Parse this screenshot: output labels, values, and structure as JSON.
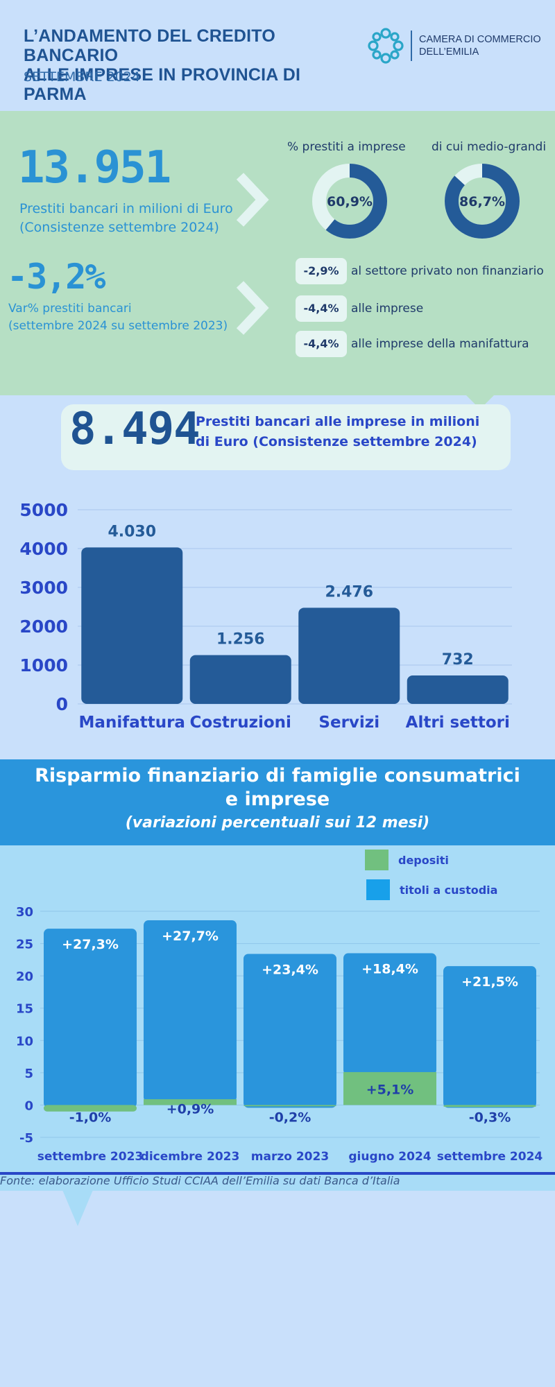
{
  "header": {
    "title_line1": "L’ANDAMENTO DEL CREDITO BANCARIO",
    "title_line2": "ALLE IMPRESE IN PROVINCIA DI PARMA",
    "subtitle": "SETTEMBRE 2024",
    "org_line1": "CAMERA DI COMMERCIO",
    "org_line2": "DELL’EMILIA"
  },
  "loans": {
    "total": "13.951",
    "total_desc_line1": "Prestiti bancari in milioni di Euro",
    "total_desc_line2": "(Consistenze settembre 2024)",
    "donut1": {
      "label": "%  prestiti a imprese",
      "value_text": "60,9%",
      "value": 60.9
    },
    "donut2": {
      "label": "di cui medio-grandi",
      "value_text": "86,7%",
      "value": 86.7
    },
    "variation": "-3,2%",
    "variation_desc_line1": "Var% prestiti bancari",
    "variation_desc_line2": "(settembre 2024 su settembre 2023)",
    "breakdown": [
      {
        "value": "-2,9%",
        "label": "al settore privato non finanziario"
      },
      {
        "value": "-4,4%",
        "label": "alle imprese"
      },
      {
        "value": "-4,4%",
        "label": "alle imprese della manifattura"
      }
    ]
  },
  "business_loans": {
    "total": "8.494",
    "desc_line1": "Prestiti bancari alle imprese in milioni",
    "desc_line2": "di Euro (Consistenze settembre 2024)"
  },
  "savings": {
    "title_line1": "Risparmio finanziario di famiglie consumatrici",
    "title_line2": "e imprese",
    "subtitle": "(variazioni percentuali sui 12 mesi)",
    "source": "Fonte: elaborazione Ufficio Studi CCIAA dell’Emilia su dati Banca d’Italia"
  },
  "colors": {
    "dark_blue": "#245b98",
    "bright_blue": "#2a95dc",
    "green": "#71c07f",
    "donut_track": "#e3f4f2"
  },
  "chart_data": [
    {
      "type": "bar",
      "categories": [
        "Manifattura",
        "Costruzioni",
        "Servizi",
        "Altri settori"
      ],
      "values": [
        4030,
        1256,
        2476,
        732
      ],
      "value_labels": [
        "4.030",
        "1.256",
        "2.476",
        "732"
      ],
      "ylim": [
        0,
        5000
      ],
      "yticks": [
        "0",
        "1000",
        "2000",
        "3000",
        "4000",
        "5000"
      ],
      "grid": true
    },
    {
      "type": "bar",
      "categories": [
        "settembre 2023",
        "dicembre 2023",
        "marzo 2023",
        "giugno 2024",
        "settembre 2024"
      ],
      "series": [
        {
          "name": "depositi",
          "values": [
            -1.0,
            0.9,
            -0.2,
            5.1,
            -0.3
          ],
          "labels": [
            "-1,0%",
            "+0,9%",
            "-0,2%",
            "+5,1%",
            "-0,3%"
          ]
        },
        {
          "name": "titoli a custodia",
          "values": [
            27.3,
            27.7,
            23.4,
            18.4,
            21.5
          ],
          "labels": [
            "+27,3%",
            "+27,7%",
            "+23,4%",
            "+18,4%",
            "+21,5%"
          ]
        }
      ],
      "ylim": [
        -5,
        30
      ],
      "yticks": [
        "-5",
        "0",
        "5",
        "10",
        "15",
        "20",
        "25",
        "30"
      ],
      "legend_position": "top-right",
      "grid": true
    }
  ]
}
